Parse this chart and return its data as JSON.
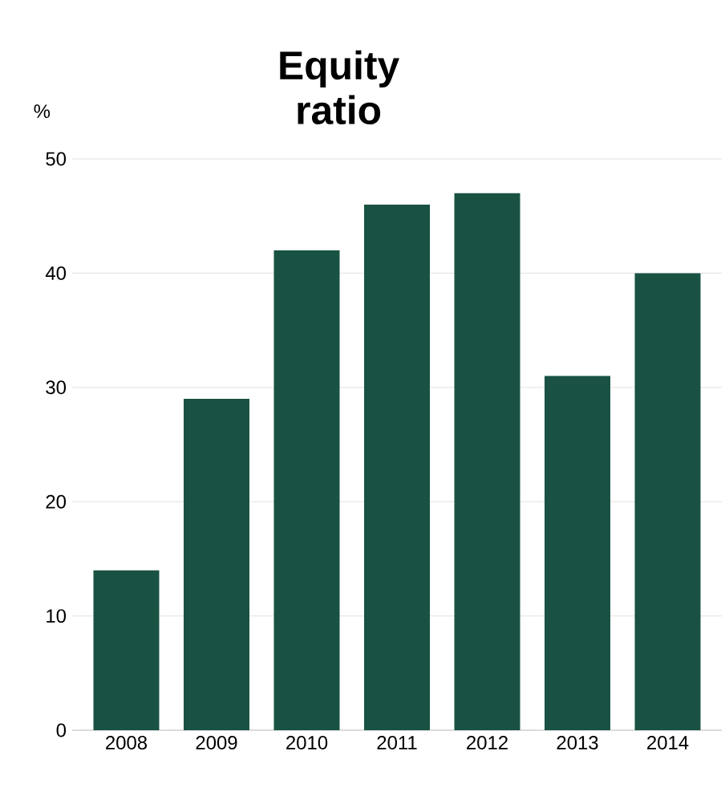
{
  "chart_data": {
    "type": "bar",
    "title": "Equity ratio",
    "ylabel": "%",
    "categories": [
      "2008",
      "2009",
      "2010",
      "2011",
      "2012",
      "2013",
      "2014"
    ],
    "values": [
      14,
      29,
      42,
      46,
      47,
      31,
      40
    ],
    "color": "#195243",
    "ylim": [
      0,
      50
    ],
    "yticks": [
      0,
      10,
      20,
      30,
      40,
      50
    ],
    "grid": "y"
  }
}
